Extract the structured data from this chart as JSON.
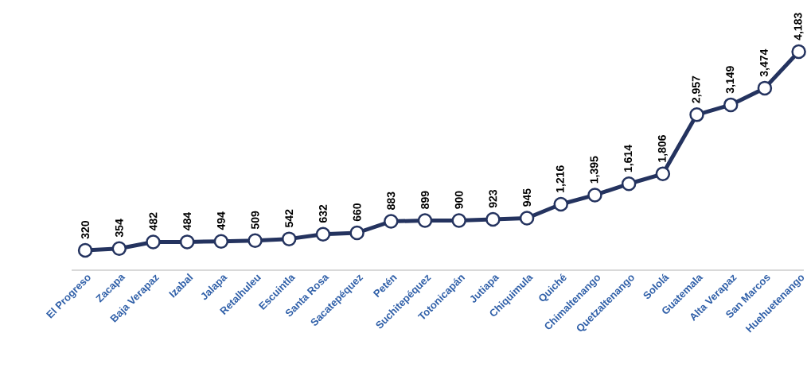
{
  "chart_data": {
    "type": "line",
    "categories": [
      "El Progreso",
      "Zacapa",
      "Baja Verapaz",
      "Izabal",
      "Jalapa",
      "Retalhuleu",
      "Escuintla",
      "Santa Rosa",
      "Sacatepéquez",
      "Petén",
      "Suchitepéquez",
      "Totonicapán",
      "Jutiapa",
      "Chiquimula",
      "Quiché",
      "Chimaltenango",
      "Quetzaltenango",
      "Sololá",
      "Guatemala",
      "Alta Verapaz",
      "San Marcos",
      "Huehuetenango"
    ],
    "values": [
      320,
      354,
      482,
      484,
      494,
      509,
      542,
      632,
      660,
      883,
      899,
      900,
      923,
      945,
      1216,
      1395,
      1614,
      1806,
      2957,
      3149,
      3474,
      4183
    ],
    "value_labels": [
      "320",
      "354",
      "482",
      "484",
      "494",
      "509",
      "542",
      "632",
      "660",
      "883",
      "899",
      "900",
      "923",
      "945",
      "1,216",
      "1,395",
      "1,614",
      "1,806",
      "2,957",
      "3,149",
      "3,474",
      "4,183"
    ],
    "color": "#24335f",
    "marker": "circle",
    "line_style": "solid"
  }
}
